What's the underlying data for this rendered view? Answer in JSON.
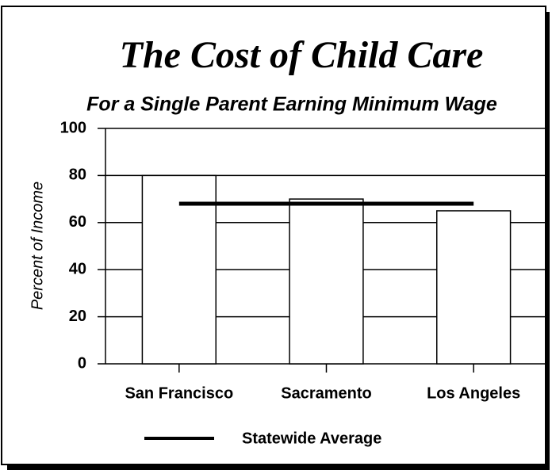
{
  "chart_data": {
    "type": "bar",
    "title": "The Cost of Child Care",
    "subtitle": "For a Single Parent Earning Minimum Wage",
    "y_label": "Percent of Income",
    "categories": [
      "San Francisco",
      "Sacramento",
      "Los Angeles"
    ],
    "values": [
      80,
      70,
      65
    ],
    "color": "#ffffff",
    "reference_line": {
      "name": "Statewide Average",
      "value": 68,
      "color": "#000000"
    },
    "ylim": [
      0,
      100
    ],
    "yticks": [
      0,
      20,
      40,
      60,
      80,
      100
    ],
    "grid": true
  }
}
